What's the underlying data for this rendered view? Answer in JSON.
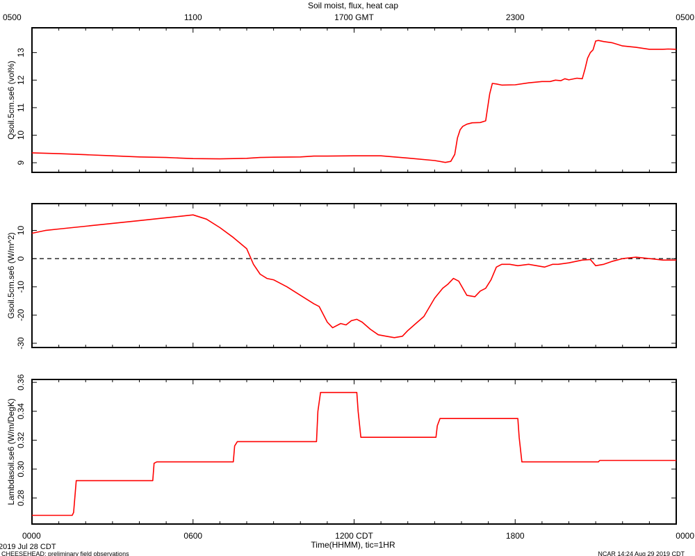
{
  "title": "Soil moist, flux, heat cap",
  "top_axis": {
    "unit": "GMT",
    "ticks": [
      {
        "hour": 0,
        "label": "0500"
      },
      {
        "hour": 6,
        "label": "1100"
      },
      {
        "hour": 12,
        "label": "1700 GMT"
      },
      {
        "hour": 18,
        "label": "2300"
      },
      {
        "hour": 24,
        "label": "0500"
      }
    ]
  },
  "bottom_axis": {
    "xlabel": "Time(HHMM), tic=1HR",
    "ticks": [
      {
        "hour": 0,
        "label": "0000"
      },
      {
        "hour": 6,
        "label": "0600"
      },
      {
        "hour": 12,
        "label": "1200 CDT"
      },
      {
        "hour": 18,
        "label": "1800"
      },
      {
        "hour": 24,
        "label": "0000"
      }
    ]
  },
  "footer": {
    "date": "2019 Jul 28 CDT",
    "project": "CHEESEHEAD: preliminary field observations",
    "credit": "NCAR 14:24 Aug 29 2019 CDT"
  },
  "colors": {
    "series": "#ff0000",
    "axes": "#000000",
    "zero_line": "#000000"
  },
  "chart_data": [
    {
      "type": "line",
      "ylabel": "Qsoil.5cm.se6 (vol%)",
      "xlim": [
        0,
        24
      ],
      "ylim": [
        8.65,
        13.9
      ],
      "yticks": [
        9,
        10,
        11,
        12,
        13
      ],
      "ytick_labels": [
        "9",
        "10",
        "11",
        "12",
        "13"
      ],
      "zero_line": false,
      "x": [
        0,
        1,
        2,
        3,
        4,
        5,
        5.5,
        6,
        7,
        7.5,
        8,
        8.5,
        9,
        10,
        10.5,
        11,
        12,
        13,
        14,
        15,
        15.4,
        15.6,
        15.75,
        15.85,
        15.95,
        16.05,
        16.2,
        16.4,
        16.7,
        16.9,
        17.05,
        17.15,
        17.3,
        17.5,
        18,
        18.5,
        19,
        19.3,
        19.5,
        19.7,
        19.85,
        20,
        20.3,
        20.5,
        20.6,
        20.7,
        20.8,
        20.9,
        21,
        21.1,
        21.3,
        21.6,
        22,
        22.5,
        23,
        23.5,
        23.7,
        24
      ],
      "y": [
        9.36,
        9.33,
        9.29,
        9.25,
        9.21,
        9.19,
        9.17,
        9.15,
        9.14,
        9.15,
        9.16,
        9.19,
        9.2,
        9.21,
        9.24,
        9.24,
        9.25,
        9.25,
        9.17,
        9.08,
        9.01,
        9.05,
        9.3,
        9.9,
        10.2,
        10.32,
        10.4,
        10.45,
        10.46,
        10.52,
        11.5,
        11.88,
        11.86,
        11.82,
        11.83,
        11.9,
        11.95,
        11.95,
        12.0,
        11.98,
        12.05,
        12.01,
        12.07,
        12.05,
        12.4,
        12.8,
        13.0,
        13.1,
        13.42,
        13.44,
        13.4,
        13.36,
        13.24,
        13.19,
        13.12,
        13.12,
        13.13,
        13.12
      ]
    },
    {
      "type": "line",
      "ylabel": "Gsoil.5cm.se6 (W/m^2)",
      "xlim": [
        0,
        24
      ],
      "ylim": [
        -31.5,
        19.5
      ],
      "yticks": [
        -30,
        -20,
        -10,
        0,
        10
      ],
      "ytick_labels": [
        "-30",
        "-20",
        "-10",
        "0",
        "10"
      ],
      "zero_line": true,
      "x": [
        0,
        0.5,
        1,
        2,
        3,
        4,
        5,
        5.5,
        6,
        6.5,
        7,
        7.5,
        8,
        8.25,
        8.5,
        8.75,
        9,
        9.5,
        10,
        10.5,
        10.7,
        11,
        11.2,
        11.5,
        11.7,
        11.9,
        12.1,
        12.3,
        12.6,
        12.9,
        13.2,
        13.5,
        13.8,
        14,
        14.3,
        14.6,
        15,
        15.3,
        15.5,
        15.7,
        15.9,
        16.2,
        16.5,
        16.7,
        16.9,
        17.1,
        17.3,
        17.5,
        17.8,
        18.1,
        18.5,
        18.8,
        19.1,
        19.4,
        19.6,
        20,
        20.5,
        20.8,
        21,
        21.3,
        21.6,
        22,
        22.5,
        23,
        23.5,
        24
      ],
      "y": [
        9,
        10,
        10.5,
        11.5,
        12.5,
        13.5,
        14.5,
        15,
        15.5,
        14,
        11,
        7.5,
        3.5,
        -2,
        -5.5,
        -7,
        -7.5,
        -10,
        -13,
        -16,
        -17,
        -22.5,
        -24.5,
        -23,
        -23.5,
        -22,
        -21.5,
        -22.5,
        -25,
        -27,
        -27.5,
        -28,
        -27.5,
        -25.5,
        -23,
        -20.5,
        -14,
        -10.5,
        -9,
        -7,
        -8,
        -13,
        -13.5,
        -11.5,
        -10.5,
        -7.5,
        -3,
        -2,
        -2,
        -2.5,
        -2,
        -2.5,
        -3,
        -2,
        -2,
        -1.5,
        -0.5,
        -0.3,
        -2.5,
        -2,
        -1,
        0,
        0.5,
        0,
        -0.5,
        -0.5
      ]
    },
    {
      "type": "line",
      "ylabel": "Lambdasoil.se6 (W/m/DegK)",
      "xlim": [
        0,
        24
      ],
      "ylim": [
        0.262,
        0.362
      ],
      "yticks": [
        0.28,
        0.3,
        0.32,
        0.34,
        0.36
      ],
      "ytick_labels": [
        "0.28",
        "0.30",
        "0.32",
        "0.34",
        "0.36"
      ],
      "zero_line": false,
      "x": [
        0,
        1.5,
        1.55,
        1.65,
        4.5,
        4.55,
        4.65,
        7.5,
        7.55,
        7.65,
        10.6,
        10.65,
        10.75,
        12.1,
        12.15,
        12.25,
        15.05,
        15.1,
        15.2,
        18.1,
        18.15,
        18.25,
        21.1,
        21.15,
        21.25,
        24
      ],
      "y": [
        0.268,
        0.268,
        0.27,
        0.292,
        0.292,
        0.304,
        0.305,
        0.305,
        0.316,
        0.319,
        0.319,
        0.34,
        0.353,
        0.353,
        0.34,
        0.322,
        0.322,
        0.33,
        0.335,
        0.335,
        0.322,
        0.305,
        0.305,
        0.306,
        0.306,
        0.306
      ]
    }
  ]
}
